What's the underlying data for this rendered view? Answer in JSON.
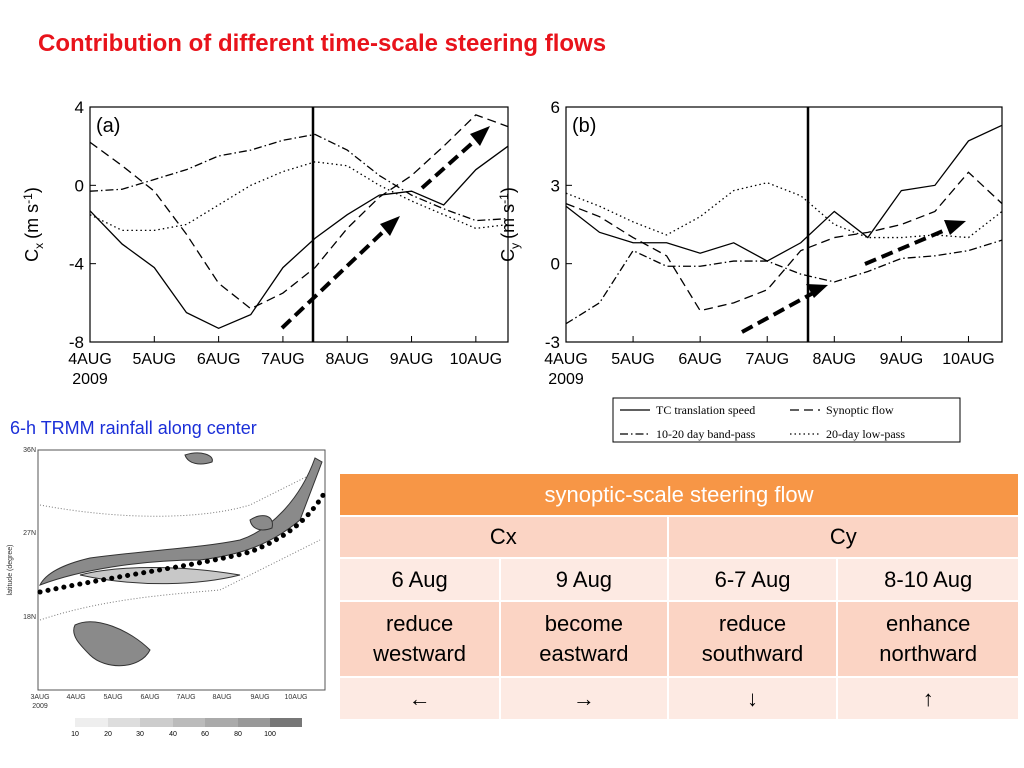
{
  "title": "Contribution of different time-scale steering flows",
  "chart_data": [
    {
      "type": "line",
      "panel": "(a)",
      "y_label": {
        "main": "C",
        "sub": "x",
        "unit": "(m s",
        "sup": "-1",
        "close": ")"
      },
      "x": [
        0,
        0.5,
        1,
        1.5,
        2,
        2.5,
        3,
        3.5,
        4,
        4.5,
        5,
        5.5,
        6,
        6.5
      ],
      "xlim": [
        0,
        6.5
      ],
      "xticks": [
        {
          "value": 0,
          "label": "4AUG"
        },
        {
          "value": 1,
          "label": "5AUG"
        },
        {
          "value": 2,
          "label": "6AUG"
        },
        {
          "value": 3,
          "label": "7AUG"
        },
        {
          "value": 4,
          "label": "8AUG"
        },
        {
          "value": 5,
          "label": "9AUG"
        },
        {
          "value": 6,
          "label": "10AUG"
        }
      ],
      "x_year": "2009",
      "ylim": [
        -8,
        4
      ],
      "yticks": [
        -8,
        -4,
        0,
        4
      ],
      "series": [
        {
          "name": "TC translation speed",
          "color": "#000000",
          "style": "solid",
          "values": [
            -1.3,
            -3,
            -4.2,
            -6.5,
            -7.3,
            -6.6,
            -4.2,
            -2.7,
            -1.5,
            -0.5,
            -0.3,
            -1,
            0.8,
            2
          ]
        },
        {
          "name": "Synoptic flow",
          "color": "#000000",
          "style": "dashed",
          "values": [
            2.2,
            1,
            -0.3,
            -2.5,
            -5,
            -6.3,
            -5.5,
            -4.2,
            -2.2,
            -0.6,
            0.5,
            2,
            3.6,
            3
          ]
        },
        {
          "name": "10-20 day band-pass",
          "color": "#000000",
          "style": "dash-dot",
          "values": [
            -0.3,
            -0.2,
            0.3,
            0.8,
            1.5,
            1.8,
            2.3,
            2.6,
            1.8,
            0.5,
            -0.5,
            -1.2,
            -1.8,
            -1.7
          ]
        },
        {
          "name": "20-day low-pass",
          "color": "#000000",
          "style": "dotted",
          "values": [
            -1.5,
            -2.3,
            -2.3,
            -2,
            -1,
            0,
            0.7,
            1.2,
            1,
            0,
            -0.8,
            -1.5,
            -2.2,
            -2
          ]
        }
      ]
    },
    {
      "type": "line",
      "panel": "(b)",
      "y_label": {
        "main": "C",
        "sub": "y",
        "unit": "(m s",
        "sup": "-1",
        "close": ")"
      },
      "x": [
        0,
        0.5,
        1,
        1.5,
        2,
        2.5,
        3,
        3.5,
        4,
        4.5,
        5,
        5.5,
        6,
        6.5
      ],
      "xlim": [
        0,
        6.5
      ],
      "xticks": [
        {
          "value": 0,
          "label": "4AUG"
        },
        {
          "value": 1,
          "label": "5AUG"
        },
        {
          "value": 2,
          "label": "6AUG"
        },
        {
          "value": 3,
          "label": "7AUG"
        },
        {
          "value": 4,
          "label": "8AUG"
        },
        {
          "value": 5,
          "label": "9AUG"
        },
        {
          "value": 6,
          "label": "10AUG"
        }
      ],
      "x_year": "2009",
      "ylim": [
        -3,
        6
      ],
      "yticks": [
        -3,
        0,
        3,
        6
      ],
      "series": [
        {
          "name": "TC translation speed",
          "color": "#000000",
          "style": "solid",
          "values": [
            2.2,
            1.2,
            0.8,
            0.8,
            0.4,
            0.8,
            0.1,
            0.8,
            2,
            1,
            2.8,
            3,
            4.7,
            5.3
          ]
        },
        {
          "name": "Synoptic flow",
          "color": "#000000",
          "style": "dashed",
          "values": [
            2.3,
            1.8,
            1,
            0.3,
            -1.8,
            -1.5,
            -1,
            0.5,
            1,
            1.2,
            1.5,
            2,
            3.5,
            2.3
          ]
        },
        {
          "name": "10-20 day band-pass",
          "color": "#000000",
          "style": "dash-dot",
          "values": [
            -2.3,
            -1.5,
            0.5,
            -0.1,
            -0.1,
            0.1,
            0.1,
            -0.4,
            -0.7,
            -0.3,
            0.2,
            0.3,
            0.5,
            0.9
          ]
        },
        {
          "name": "20-day low-pass",
          "color": "#000000",
          "style": "dotted",
          "values": [
            2.7,
            2.2,
            1.6,
            1.1,
            1.8,
            2.8,
            3.1,
            2.6,
            1.5,
            1,
            1,
            1.1,
            1,
            2
          ]
        }
      ]
    }
  ],
  "rainfall": {
    "caption": "6-h TRMM rainfall along center",
    "y_label": "latitude (degree)",
    "yticks": [
      "36N",
      "27N",
      "18N"
    ],
    "xticks": [
      "3AUG",
      "4AUG",
      "5AUG",
      "6AUG",
      "7AUG",
      "8AUG",
      "9AUG",
      "10AUG"
    ],
    "x_year": "2009",
    "colorbar": [
      "10",
      "20",
      "30",
      "40",
      "60",
      "80",
      "100"
    ]
  },
  "table": {
    "header": "synoptic-scale steering flow",
    "rows": [
      [
        "Cx",
        "Cy"
      ],
      [
        "6 Aug",
        "9 Aug",
        "6-7 Aug",
        "8-10 Aug"
      ],
      [
        "reduce westward",
        "become eastward",
        "reduce southward",
        "enhance northward"
      ],
      [
        "←",
        "→",
        "↓",
        "↑"
      ]
    ]
  }
}
